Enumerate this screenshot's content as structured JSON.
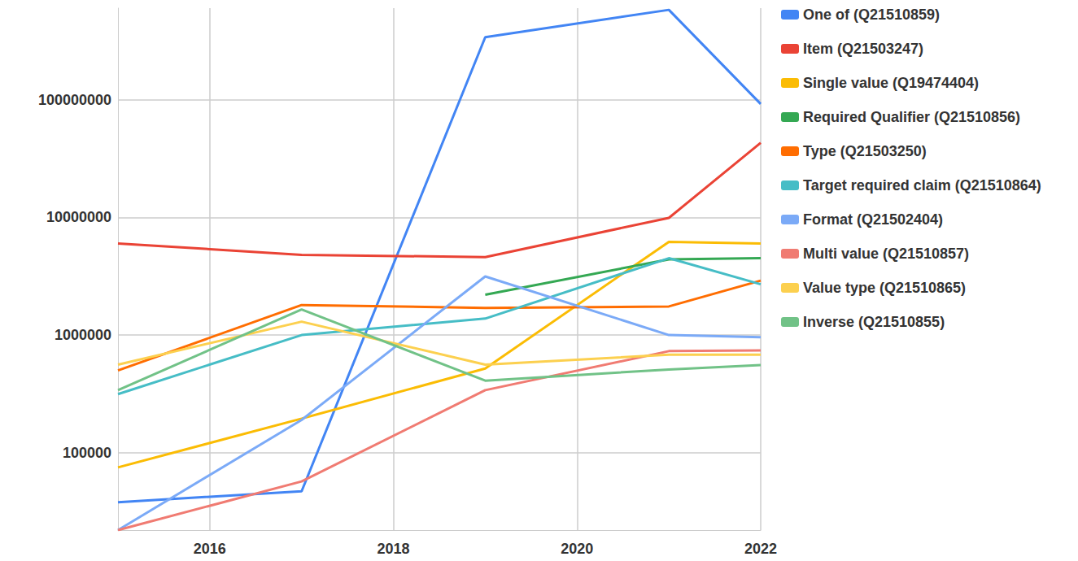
{
  "chart_data": {
    "type": "line",
    "log": "y",
    "grid": true,
    "legend": "right",
    "x": [
      2015,
      2017,
      2019,
      2021,
      2022
    ],
    "xlim": [
      2015,
      2022
    ],
    "xticks": [
      2016,
      2018,
      2020,
      2022
    ],
    "ylim": [
      22000,
      600000000
    ],
    "yticks": [
      100000,
      1000000,
      10000000,
      100000000
    ],
    "series": [
      {
        "name": "One of (Q21510859)",
        "color": "#4285f4",
        "values": [
          38000,
          47000,
          340000000,
          580000000,
          92000000
        ]
      },
      {
        "name": "Item (Q21503247)",
        "color": "#ea4335",
        "values": [
          6000000,
          4800000,
          4600000,
          9900000,
          43000000
        ]
      },
      {
        "name": "Single value (Q19474404)",
        "color": "#fbbc04",
        "values": [
          75000,
          195000,
          520000,
          6200000,
          6000000
        ]
      },
      {
        "name": "Required Qualifier (Q21510856)",
        "color": "#34a853",
        "values": [
          null,
          null,
          2200000,
          4400000,
          4500000
        ]
      },
      {
        "name": "Type (Q21503250)",
        "color": "#ff6d01",
        "values": [
          500000,
          1800000,
          1700000,
          1750000,
          2900000
        ]
      },
      {
        "name": "Target required claim (Q21510864)",
        "color": "#46bdc6",
        "values": [
          315000,
          1000000,
          1380000,
          4500000,
          2700000
        ]
      },
      {
        "name": "Format (Q21502404)",
        "color": "#7baaf7",
        "values": [
          22000,
          190000,
          3150000,
          1000000,
          960000
        ]
      },
      {
        "name": "Multi value (Q21510857)",
        "color": "#f07b72",
        "values": [
          22000,
          57000,
          340000,
          730000,
          740000
        ]
      },
      {
        "name": "Value type (Q21510865)",
        "color": "#fcd04f",
        "values": [
          560000,
          1300000,
          560000,
          680000,
          680000
        ]
      },
      {
        "name": "Inverse (Q21510855)",
        "color": "#71c287",
        "values": [
          340000,
          1650000,
          410000,
          510000,
          555000
        ]
      }
    ]
  }
}
